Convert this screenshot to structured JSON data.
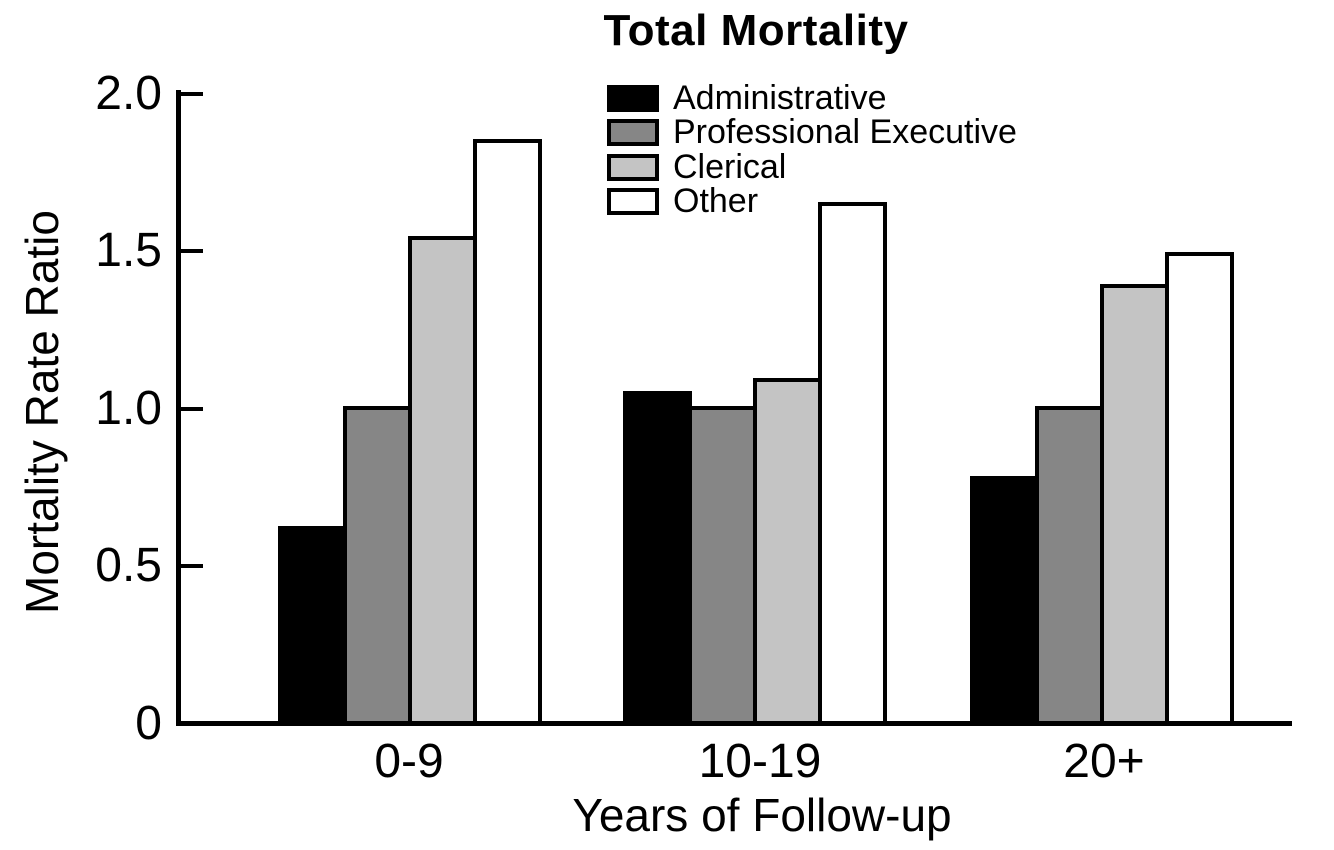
{
  "chart_data": {
    "type": "bar",
    "title": "Total Mortality",
    "xlabel": "Years of Follow-up",
    "ylabel": "Mortality Rate Ratio",
    "categories": [
      "0-9",
      "10-19",
      "20+"
    ],
    "series": [
      {
        "name": "Administrative",
        "color": "#000000",
        "values": [
          0.62,
          1.05,
          0.78
        ]
      },
      {
        "name": "Professional Executive",
        "color": "#868686",
        "values": [
          1.0,
          1.0,
          1.0
        ]
      },
      {
        "name": "Clerical",
        "color": "#c4c4c4",
        "values": [
          1.54,
          1.09,
          1.39
        ]
      },
      {
        "name": "Other",
        "color": "#ffffff",
        "values": [
          1.85,
          1.65,
          1.49
        ]
      }
    ],
    "ylim": [
      0,
      2.0
    ],
    "yticks": [
      {
        "value": 0,
        "label": "0"
      },
      {
        "value": 0.5,
        "label": "0.5"
      },
      {
        "value": 1.0,
        "label": "1.0"
      },
      {
        "value": 1.5,
        "label": "1.5"
      },
      {
        "value": 2.0,
        "label": "2.0"
      }
    ],
    "grid": false,
    "legend_position": "top-center-inside",
    "bar_edge_color": "#000000",
    "axis_color": "#000000",
    "background_color": "#ffffff"
  }
}
